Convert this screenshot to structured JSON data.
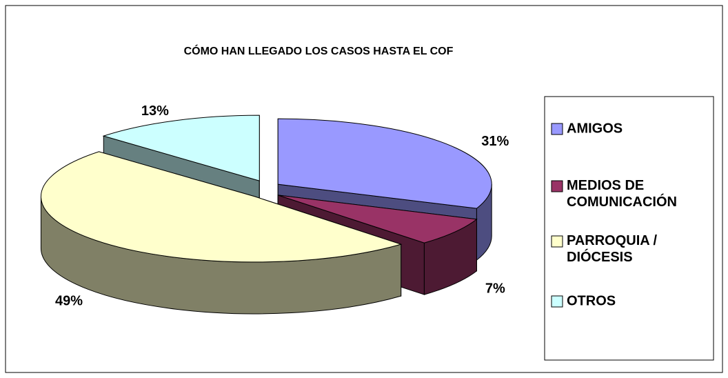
{
  "chart_data": {
    "type": "pie3d",
    "title": "CÓMO HAN LLEGADO LOS CASOS HASTA EL COF",
    "categories": [
      "AMIGOS",
      "MEDIOS DE COMUNICACIÓN",
      "PARROQUIA / DIÓCESIS",
      "OTROS"
    ],
    "values": [
      31,
      7,
      49,
      13
    ],
    "value_labels": [
      "31%",
      "7%",
      "49%",
      "13%"
    ],
    "colors": [
      "#9999ff",
      "#993366",
      "#ffffcc",
      "#ccffff"
    ],
    "legend": "right"
  }
}
